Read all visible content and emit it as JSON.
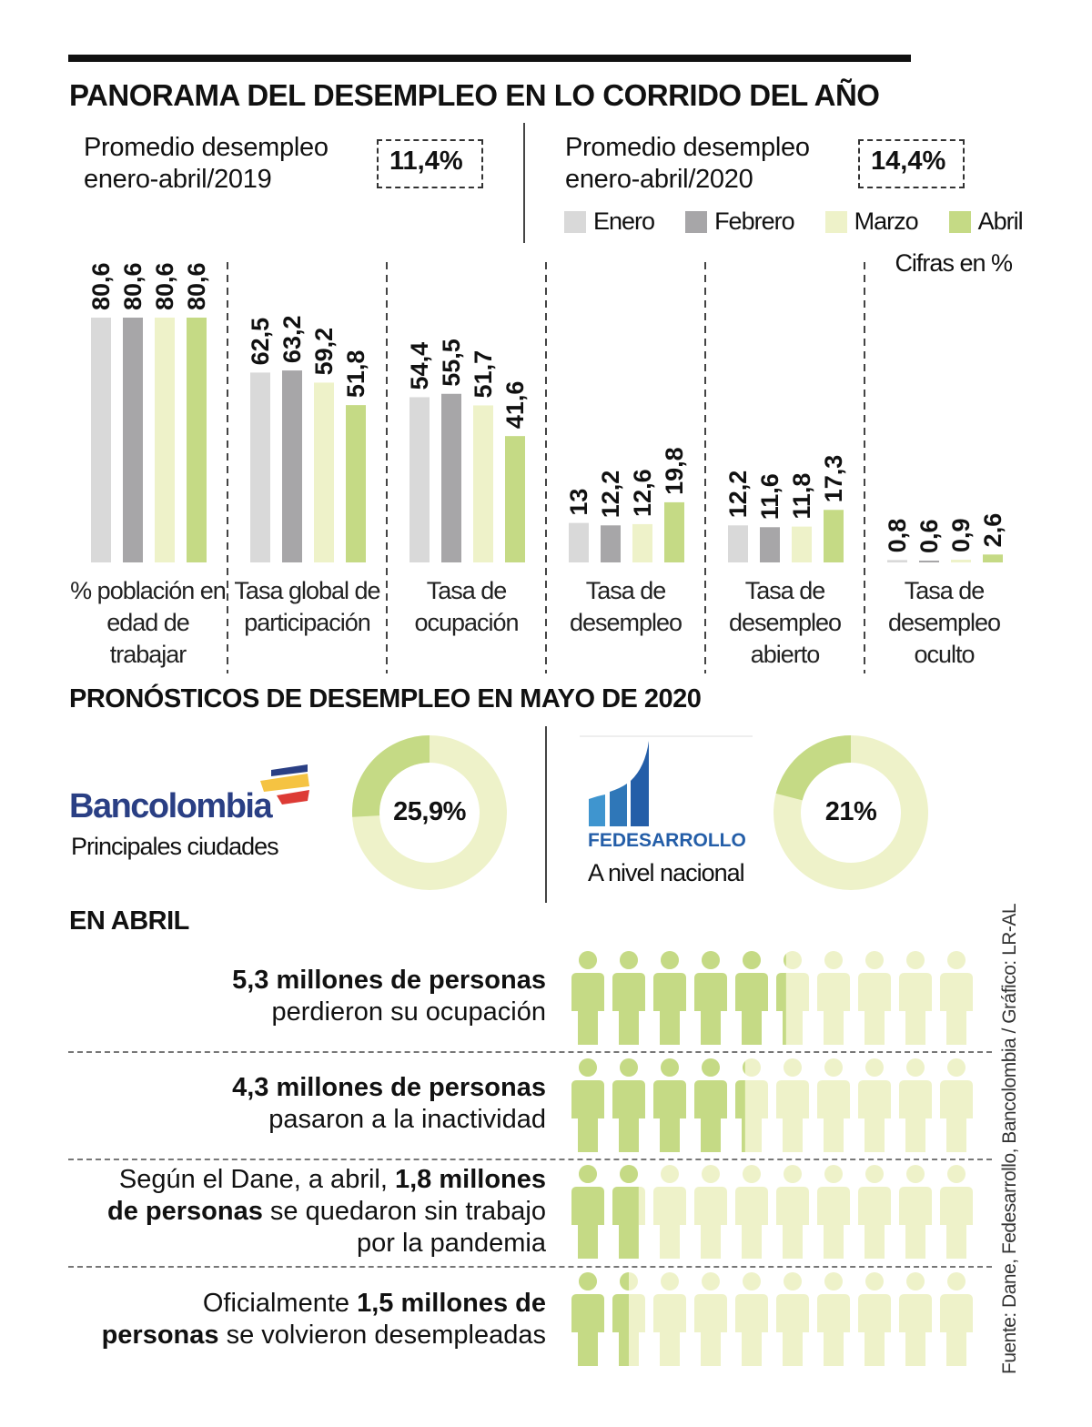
{
  "title": "PANORAMA DEL DESEMPLEO EN LO CORRIDO DEL AÑO",
  "avg2019": {
    "label1": "Promedio desempleo",
    "label2": "enero-abril/2019",
    "value": "11,4%"
  },
  "avg2020": {
    "label1": "Promedio desempleo",
    "label2": "enero-abril/2020",
    "value": "14,4%"
  },
  "units": "Cifras en %",
  "colors": {
    "Enero": "#d9d9d9",
    "Febrero": "#a7a6a8",
    "Marzo": "#eef2c9",
    "Abril": "#c5da85"
  },
  "chart_data": {
    "type": "bar",
    "legend": [
      "Enero",
      "Febrero",
      "Marzo",
      "Abril"
    ],
    "legend_placement": "top-right",
    "categories": [
      [
        "% población en",
        "edad de trabajar"
      ],
      [
        "Tasa global de",
        "participación"
      ],
      [
        "Tasa de",
        "ocupación"
      ],
      [
        "Tasa de",
        "desempleo"
      ],
      [
        "Tasa de",
        "desempleo",
        "abierto"
      ],
      [
        "Tasa de",
        "desempleo",
        "oculto"
      ]
    ],
    "series": [
      {
        "name": "Enero",
        "values": [
          80.6,
          62.5,
          54.4,
          13,
          12.2,
          0.8
        ],
        "labels": [
          "80,6",
          "62,5",
          "54,4",
          "13",
          "12,2",
          "0,8"
        ]
      },
      {
        "name": "Febrero",
        "values": [
          80.6,
          63.2,
          55.5,
          12.2,
          11.6,
          0.6
        ],
        "labels": [
          "80,6",
          "63,2",
          "55,5",
          "12,2",
          "11,6",
          "0,6"
        ]
      },
      {
        "name": "Marzo",
        "values": [
          80.6,
          59.2,
          51.7,
          12.6,
          11.8,
          0.9
        ],
        "labels": [
          "80,6",
          "59,2",
          "51,7",
          "12,6",
          "11,8",
          "0,9"
        ]
      },
      {
        "name": "Abril",
        "values": [
          80.6,
          51.8,
          41.6,
          19.8,
          17.3,
          2.6
        ],
        "labels": [
          "80,6",
          "51,8",
          "41,6",
          "19,8",
          "17,3",
          "2,6"
        ]
      }
    ],
    "ylim": [
      0,
      85
    ],
    "grid": false
  },
  "forecast": {
    "title": "PRONÓSTICOS DE DESEMPLEO EN MAYO DE 2020",
    "items": [
      {
        "brand": "Bancolombia",
        "scope": "Principales ciudades",
        "value": 25.9,
        "label": "25,9%"
      },
      {
        "brand": "FEDESARROLLO",
        "scope": "A nivel nacional",
        "value": 21,
        "label": "21%"
      }
    ]
  },
  "april": {
    "title": "EN ABRIL",
    "rows": [
      {
        "bold1": "5,3 millones de personas",
        "text1": "",
        "line2": "perdieron su ocupación",
        "value": 5.3
      },
      {
        "bold1": "4,3 millones de personas",
        "text1": "",
        "line2": "pasaron a la inactividad",
        "value": 4.3
      },
      {
        "pre": "Según el Dane, a abril, ",
        "bold1": "1,8 millones",
        "bold2": "de personas",
        "post2": " se quedaron sin trabajo",
        "line3": "por la pandemia",
        "value": 1.8
      },
      {
        "pre": "Oficialmente ",
        "bold1": "1,5 millones de",
        "bold2": "personas",
        "post2": " se volvieron desempleadas",
        "value": 1.5
      }
    ]
  },
  "source": "Fuente: Dane, Fedesarrollo, Bancolombia / Gráfico: LR-AL"
}
